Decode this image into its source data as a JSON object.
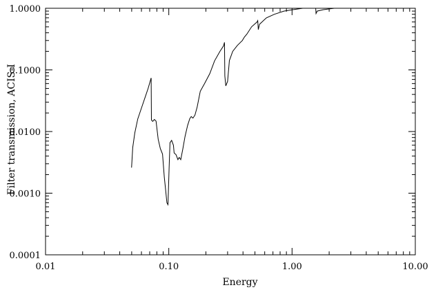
{
  "chart_data": {
    "type": "line",
    "xlabel": "Energy",
    "ylabel": "Filter transmission, ACIS-I",
    "xscale": "log",
    "yscale": "log",
    "xlim": [
      0.01,
      10.0
    ],
    "ylim": [
      0.0001,
      1.0
    ],
    "xticks": [
      {
        "value": 0.01,
        "label": "0.01"
      },
      {
        "value": 0.1,
        "label": "0.10"
      },
      {
        "value": 1.0,
        "label": "1.00"
      },
      {
        "value": 10.0,
        "label": "10.00"
      }
    ],
    "yticks": [
      {
        "value": 0.0001,
        "label": "0.0001"
      },
      {
        "value": 0.001,
        "label": "0.0010"
      },
      {
        "value": 0.01,
        "label": "0.0100"
      },
      {
        "value": 0.1,
        "label": "0.1000"
      },
      {
        "value": 1.0,
        "label": "1.0000"
      }
    ],
    "grid": false,
    "line_color": "#000000",
    "series": [
      {
        "x": [
          0.0499,
          0.051,
          0.053,
          0.056,
          0.06,
          0.064,
          0.068,
          0.0719,
          0.0723,
          0.074,
          0.0764,
          0.0788,
          0.082,
          0.0854,
          0.089,
          0.092,
          0.0944,
          0.0965,
          0.0985,
          0.1005,
          0.1023,
          0.1055,
          0.109,
          0.1105,
          0.1145,
          0.1186,
          0.1216,
          0.125,
          0.13,
          0.1355,
          0.142,
          0.148,
          0.152,
          0.157,
          0.163,
          0.17,
          0.18,
          0.195,
          0.215,
          0.235,
          0.26,
          0.278,
          0.283,
          0.285,
          0.29,
          0.3,
          0.31,
          0.33,
          0.36,
          0.395,
          0.41,
          0.43,
          0.47,
          0.52,
          0.527,
          0.532,
          0.545,
          0.62,
          0.72,
          0.86,
          1.02,
          1.22,
          1.45,
          1.555,
          1.565,
          1.6,
          1.8,
          2.2,
          3.0,
          4.5,
          6.5,
          10.0
        ],
        "y": [
          0.0026,
          0.0055,
          0.0095,
          0.016,
          0.024,
          0.035,
          0.05,
          0.074,
          0.0154,
          0.0146,
          0.0157,
          0.0148,
          0.0075,
          0.0053,
          0.0043,
          0.0018,
          0.0011,
          0.0007,
          0.00065,
          0.0025,
          0.0066,
          0.0072,
          0.006,
          0.0045,
          0.0042,
          0.0035,
          0.0038,
          0.0035,
          0.0052,
          0.0083,
          0.0125,
          0.0162,
          0.0175,
          0.0165,
          0.0185,
          0.025,
          0.045,
          0.06,
          0.087,
          0.14,
          0.2,
          0.245,
          0.28,
          0.08,
          0.055,
          0.065,
          0.142,
          0.2,
          0.25,
          0.3,
          0.34,
          0.38,
          0.5,
          0.6,
          0.63,
          0.45,
          0.55,
          0.7,
          0.8,
          0.9,
          0.95,
          1.0,
          1.03,
          1.04,
          0.82,
          0.9,
          0.95,
          1.0,
          1.05,
          1.08,
          1.09,
          1.1
        ]
      }
    ]
  }
}
